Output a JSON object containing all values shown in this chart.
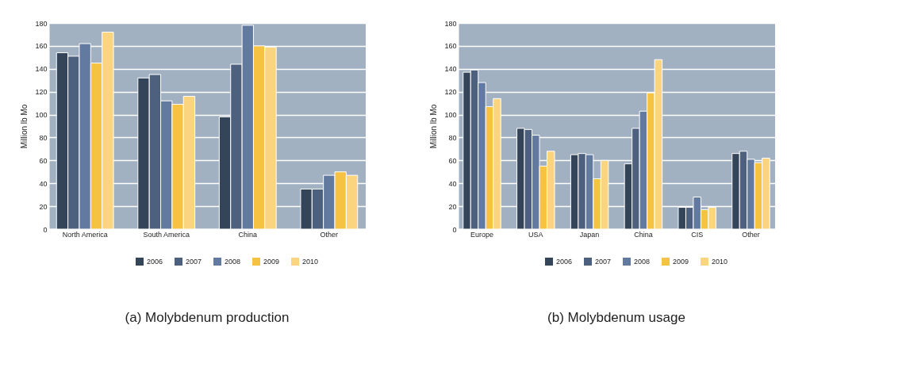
{
  "chart_data": [
    {
      "type": "bar",
      "title": "(a) Molybdenum production",
      "ylabel": "Million lb Mo",
      "categories": [
        "North America",
        "South America",
        "China",
        "Other"
      ],
      "ylim": [
        0,
        180
      ],
      "yticks": [
        0,
        20,
        40,
        60,
        80,
        100,
        120,
        140,
        160,
        180
      ],
      "grid": "y",
      "legend": "bottom right",
      "series": [
        {
          "name": "2006",
          "color": "#344459",
          "values": [
            154,
            132,
            98,
            35
          ]
        },
        {
          "name": "2007",
          "color": "#4d607e",
          "values": [
            151,
            135,
            144,
            35
          ]
        },
        {
          "name": "2008",
          "color": "#637aa0",
          "values": [
            162,
            112,
            178,
            47
          ]
        },
        {
          "name": "2009",
          "color": "#f5c242",
          "values": [
            145,
            109,
            160,
            50
          ]
        },
        {
          "name": "2010",
          "color": "#fad47e",
          "values": [
            172,
            116,
            159,
            47
          ]
        }
      ]
    },
    {
      "type": "bar",
      "title": "(b) Molybdenum usage",
      "ylabel": "Million lb Mo",
      "categories": [
        "Europe",
        "USA",
        "Japan",
        "China",
        "CIS",
        "Other"
      ],
      "ylim": [
        0,
        180
      ],
      "yticks": [
        0,
        20,
        40,
        60,
        80,
        100,
        120,
        140,
        160,
        180
      ],
      "grid": "y",
      "legend": "bottom right",
      "series": [
        {
          "name": "2006",
          "color": "#344459",
          "values": [
            137,
            88,
            65,
            57,
            19,
            66
          ]
        },
        {
          "name": "2007",
          "color": "#4d607e",
          "values": [
            139,
            87,
            66,
            88,
            19,
            68
          ]
        },
        {
          "name": "2008",
          "color": "#637aa0",
          "values": [
            128,
            82,
            65,
            103,
            28,
            61
          ]
        },
        {
          "name": "2009",
          "color": "#f5c242",
          "values": [
            107,
            55,
            44,
            119,
            17,
            58
          ]
        },
        {
          "name": "2010",
          "color": "#fad47e",
          "values": [
            114,
            68,
            60,
            148,
            19,
            62
          ]
        }
      ]
    }
  ]
}
